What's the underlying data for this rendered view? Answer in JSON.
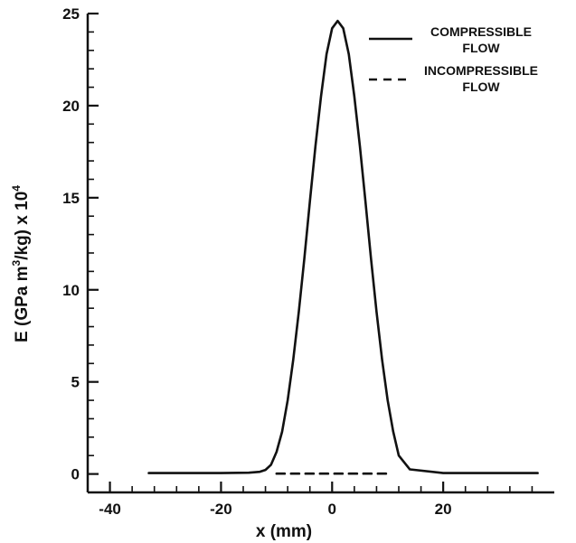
{
  "chart_data": {
    "type": "line",
    "title": "",
    "xlabel": "x (mm)",
    "ylabel": "E (GPa m³/kg) x 10⁴",
    "ylabel_parts": [
      "E (GPa m",
      "3",
      "/kg) x 10",
      "4"
    ],
    "xlim": [
      -44,
      40
    ],
    "ylim": [
      -1,
      25
    ],
    "x_ticks": [
      -40,
      -20,
      0,
      20
    ],
    "y_ticks": [
      0,
      5,
      10,
      15,
      20,
      25
    ],
    "grid": false,
    "legend_position": "top-right",
    "series": [
      {
        "name": "COMPRESSIBLE FLOW",
        "style": "solid",
        "color": "#111111",
        "x": [
          -33,
          -20,
          -15,
          -13,
          -12,
          -11,
          -10,
          -9,
          -8,
          -7,
          -6,
          -5,
          -4,
          -3,
          -2,
          -1,
          0,
          1,
          2,
          3,
          4,
          5,
          6,
          7,
          8,
          9,
          10,
          11,
          12,
          14,
          20,
          37
        ],
        "y": [
          0.05,
          0.05,
          0.07,
          0.12,
          0.22,
          0.5,
          1.2,
          2.3,
          4.0,
          6.2,
          8.8,
          11.7,
          14.8,
          17.8,
          20.5,
          22.8,
          24.2,
          24.6,
          24.2,
          22.8,
          20.5,
          17.8,
          14.8,
          11.7,
          8.8,
          6.2,
          4.0,
          2.3,
          1.0,
          0.25,
          0.05,
          0.05
        ]
      },
      {
        "name": "INCOMPRESSIBLE FLOW",
        "style": "dashed",
        "color": "#111111",
        "x": [
          -10,
          10
        ],
        "y": [
          0.02,
          0.02
        ]
      }
    ],
    "legend": [
      {
        "line1": "COMPRESSIBLE",
        "line2": "FLOW"
      },
      {
        "line1": "INCOMPRESSIBLE",
        "line2": "FLOW"
      }
    ]
  }
}
